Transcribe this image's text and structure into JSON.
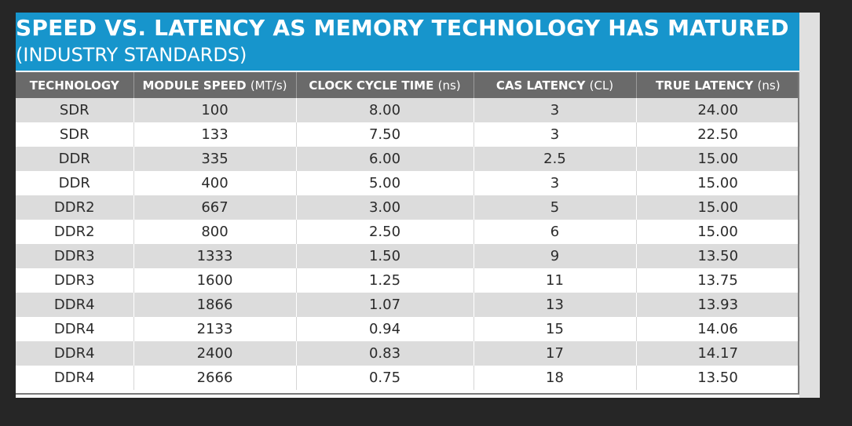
{
  "chart_data": {
    "type": "table",
    "title": "SPEED VS. LATENCY AS MEMORY TECHNOLOGY HAS MATURED",
    "subtitle": "(INDUSTRY STANDARDS)",
    "columns": [
      {
        "label": "TECHNOLOGY",
        "unit": ""
      },
      {
        "label": "MODULE SPEED",
        "unit": "(MT/s)"
      },
      {
        "label": "CLOCK CYCLE TIME",
        "unit": "(ns)"
      },
      {
        "label": "CAS LATENCY",
        "unit": "(CL)"
      },
      {
        "label": "TRUE LATENCY",
        "unit": "(ns)"
      }
    ],
    "rows": [
      [
        "SDR",
        "100",
        "8.00",
        "3",
        "24.00"
      ],
      [
        "SDR",
        "133",
        "7.50",
        "3",
        "22.50"
      ],
      [
        "DDR",
        "335",
        "6.00",
        "2.5",
        "15.00"
      ],
      [
        "DDR",
        "400",
        "5.00",
        "3",
        "15.00"
      ],
      [
        "DDR2",
        "667",
        "3.00",
        "5",
        "15.00"
      ],
      [
        "DDR2",
        "800",
        "2.50",
        "6",
        "15.00"
      ],
      [
        "DDR3",
        "1333",
        "1.50",
        "9",
        "13.50"
      ],
      [
        "DDR3",
        "1600",
        "1.25",
        "11",
        "13.75"
      ],
      [
        "DDR4",
        "1866",
        "1.07",
        "13",
        "13.93"
      ],
      [
        "DDR4",
        "2133",
        "0.94",
        "15",
        "14.06"
      ],
      [
        "DDR4",
        "2400",
        "0.83",
        "17",
        "14.17"
      ],
      [
        "DDR4",
        "2666",
        "0.75",
        "18",
        "13.50"
      ]
    ]
  },
  "colors": {
    "banner": "#1795cc",
    "header_row": "#6a6a6a",
    "stripe": "#dcdcdc",
    "background": "#262626"
  }
}
